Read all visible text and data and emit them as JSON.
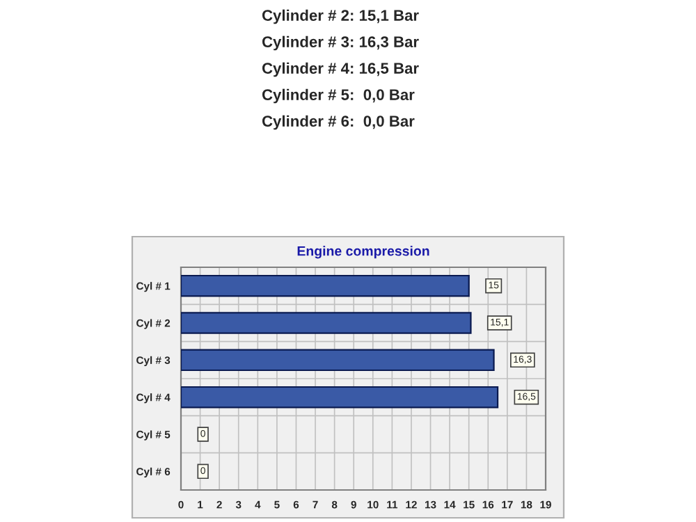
{
  "chart_data": {
    "type": "bar",
    "orientation": "horizontal",
    "title": "Engine compression",
    "categories": [
      "Cyl # 1",
      "Cyl # 2",
      "Cyl # 3",
      "Cyl # 4",
      "Cyl # 5",
      "Cyl # 6"
    ],
    "values": [
      15,
      15.1,
      16.3,
      16.5,
      0,
      0
    ],
    "value_labels": [
      "15",
      "15,1",
      "16,3",
      "16,5",
      "0",
      "0"
    ],
    "color": "#3a5aa6",
    "xlim": [
      0,
      19
    ],
    "xticks": [
      0,
      1,
      2,
      3,
      4,
      5,
      6,
      7,
      8,
      9,
      10,
      11,
      12,
      13,
      14,
      15,
      16,
      17,
      18,
      19
    ],
    "grid": true,
    "legend": false,
    "annotations": [
      "Cylinder # 2: 15,1 Bar",
      "Cylinder # 3: 16,3 Bar",
      "Cylinder # 4: 16,5 Bar",
      "Cylinder # 5:  0,0 Bar",
      "Cylinder # 6:  0,0 Bar"
    ]
  }
}
